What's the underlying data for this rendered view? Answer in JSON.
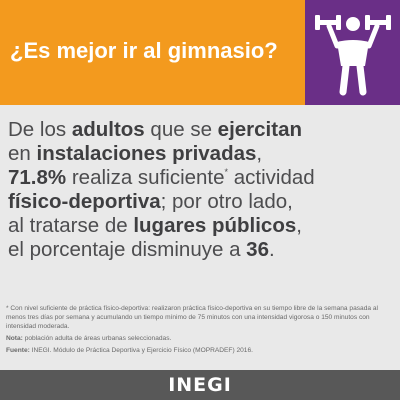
{
  "header": {
    "title": "¿Es mejor ir al gimnasio?",
    "icon": "weightlifter-icon",
    "colors": {
      "orange": "#f39a1e",
      "purple": "#6a2f87"
    }
  },
  "body": {
    "t1": "De los ",
    "t2": "adultos",
    "t3": " que se ",
    "t4": "ejercitan",
    "t5": "en ",
    "t6": "instalaciones privadas",
    "t7": ",",
    "t8": "71.8%",
    "t9": " realiza suficiente",
    "t10": "*",
    "t11": " actividad",
    "t12": "físico-deportiva",
    "t13": "; por otro lado,",
    "t14": "al tratarse de ",
    "t15": "lugares públicos",
    "t16": ",",
    "t17": "el porcentaje disminuye a ",
    "t18": "36",
    "t19": "."
  },
  "notes": {
    "footnote": "* Con nivel suficiente de práctica físico-deportiva: realizaron práctica físico-deportiva en su tiempo libre de la semana pasada al menos tres días por semana y acumulando un tiempo mínimo de 75 minutos con una intensidad vigorosa o 150 minutos con intensidad moderada.",
    "nota_label": "Nota:",
    "nota_text": " población adulta de áreas urbanas seleccionadas.",
    "fuente_label": "Fuente:",
    "fuente_text": " INEGI. Módulo de Práctica Deportiva y Ejercicio Físico (MOPRADEF) 2016."
  },
  "footer": {
    "logo": "INEGI",
    "color": "#585858"
  }
}
